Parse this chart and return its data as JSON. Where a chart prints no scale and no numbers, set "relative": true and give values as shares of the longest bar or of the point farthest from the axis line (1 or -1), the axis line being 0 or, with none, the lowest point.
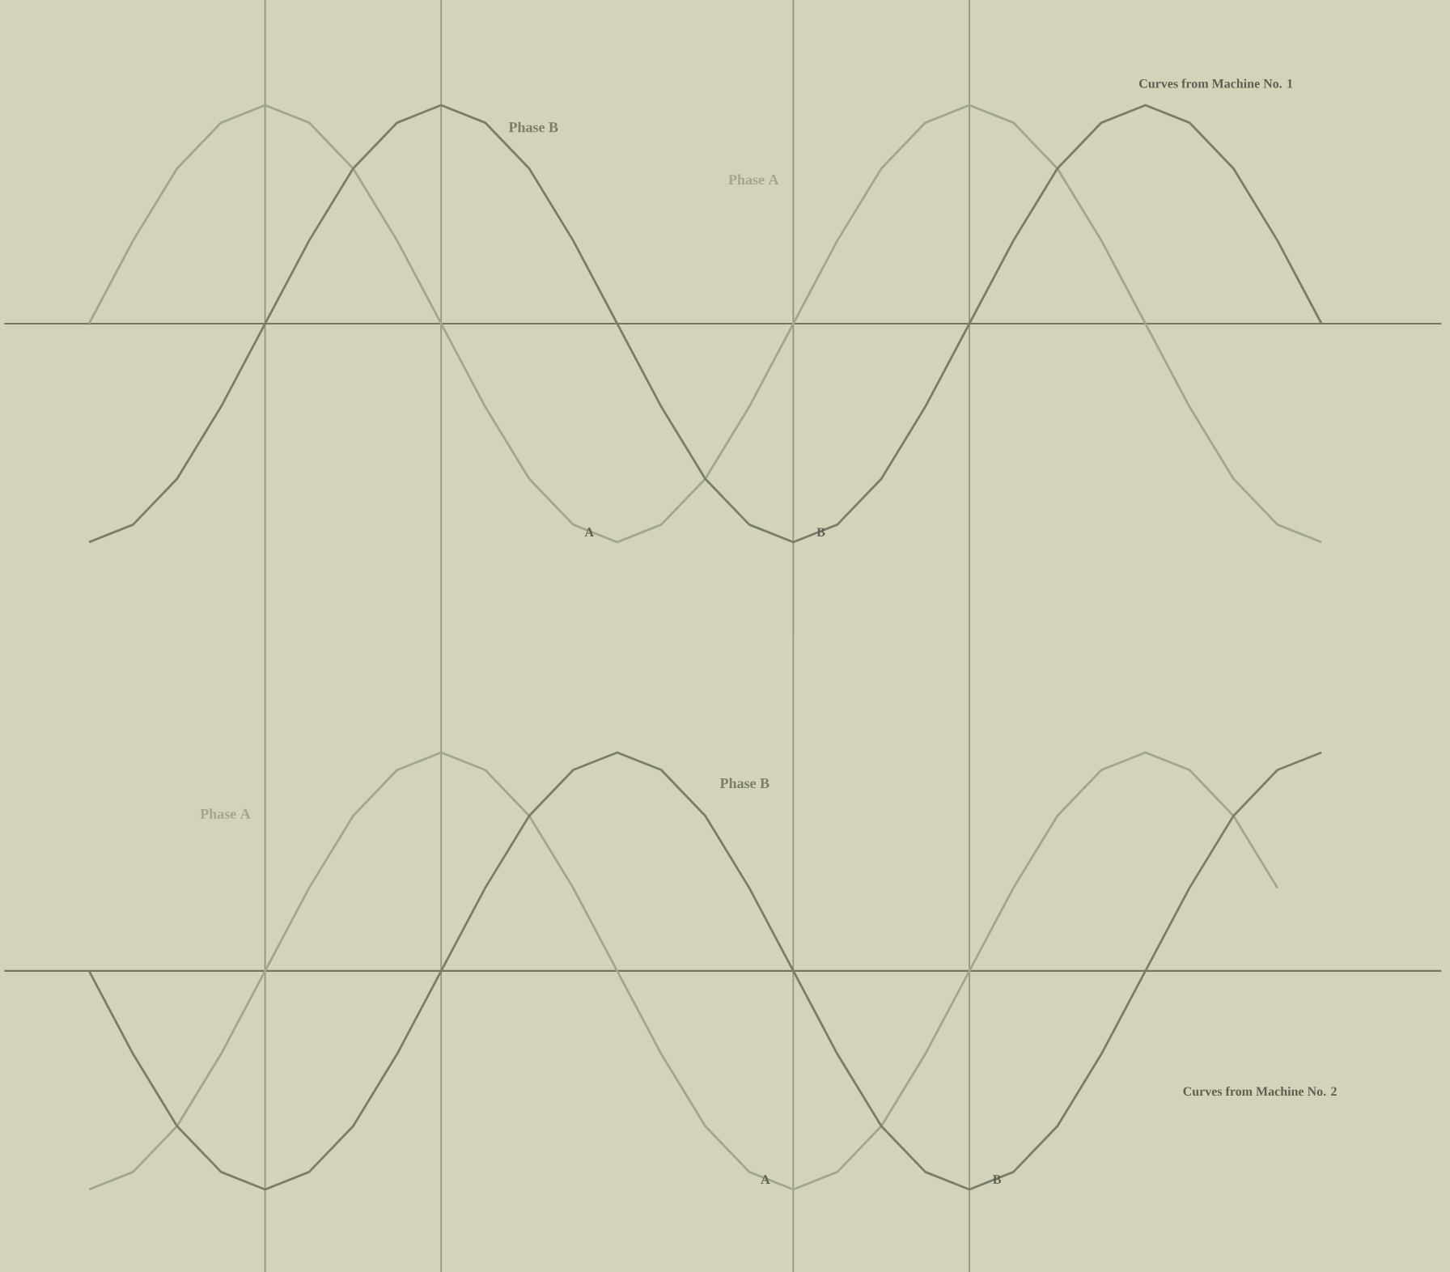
{
  "chart_data": [
    {
      "type": "line",
      "relative": true,
      "grid": "x",
      "categories": [
        null,
        null,
        null,
        null,
        null,
        null,
        null,
        null,
        null,
        null,
        null,
        null,
        null,
        null,
        null,
        null,
        null,
        null,
        null,
        null,
        null,
        null,
        null,
        null,
        null,
        null,
        null,
        null,
        null
      ],
      "series": [
        {
          "name": "Phase A",
          "color": "#a2a690",
          "values": [
            0,
            0.38,
            0.71,
            0.92,
            1,
            0.92,
            0.71,
            0.38,
            0,
            -0.38,
            -0.71,
            -0.92,
            -1,
            -0.92,
            -0.71,
            -0.38,
            0,
            0.38,
            0.71,
            0.92,
            1,
            0.92,
            0.71,
            0.38,
            0,
            -0.38,
            -0.71,
            -0.92,
            -1
          ]
        },
        {
          "name": "Phase B",
          "color": "#7a7d69",
          "values": [
            -1,
            -0.92,
            -0.71,
            -0.38,
            0,
            0.38,
            0.71,
            0.92,
            1,
            0.92,
            0.71,
            0.38,
            0,
            -0.38,
            -0.71,
            -0.92,
            -1,
            -0.92,
            -0.71,
            -0.38,
            0,
            0.38,
            0.71,
            0.92,
            1,
            0.92,
            0.71,
            0.38,
            0
          ]
        }
      ],
      "annotations": [
        "Curves from Machine No. 1",
        "A",
        "B"
      ]
    },
    {
      "type": "line",
      "relative": true,
      "grid": "x",
      "categories": [
        null,
        null,
        null,
        null,
        null,
        null,
        null,
        null,
        null,
        null,
        null,
        null,
        null,
        null,
        null,
        null,
        null,
        null,
        null,
        null,
        null,
        null,
        null,
        null,
        null,
        null,
        null,
        null,
        null
      ],
      "series": [
        {
          "name": "Phase A",
          "color": "#a2a690",
          "values": [
            -1,
            -0.92,
            -0.71,
            -0.38,
            0,
            0.38,
            0.71,
            0.92,
            1,
            0.92,
            0.71,
            0.38,
            0,
            -0.38,
            -0.71,
            -0.92,
            -1,
            -0.92,
            -0.71,
            -0.38,
            0,
            0.38,
            0.71,
            0.92,
            1,
            0.92,
            0.71,
            0.38,
            null
          ]
        },
        {
          "name": "Phase B",
          "color": "#7a7d69",
          "values": [
            0,
            -0.38,
            -0.71,
            -0.92,
            -1,
            -0.92,
            -0.71,
            -0.38,
            0,
            0.38,
            0.71,
            0.92,
            1,
            0.92,
            0.71,
            0.38,
            0,
            -0.38,
            -0.71,
            -0.92,
            -1,
            -0.92,
            -0.71,
            -0.38,
            0,
            0.38,
            0.71,
            0.92,
            1
          ]
        }
      ],
      "annotations": [
        "Curves from Machine No. 2",
        "A",
        "B"
      ]
    }
  ]
}
